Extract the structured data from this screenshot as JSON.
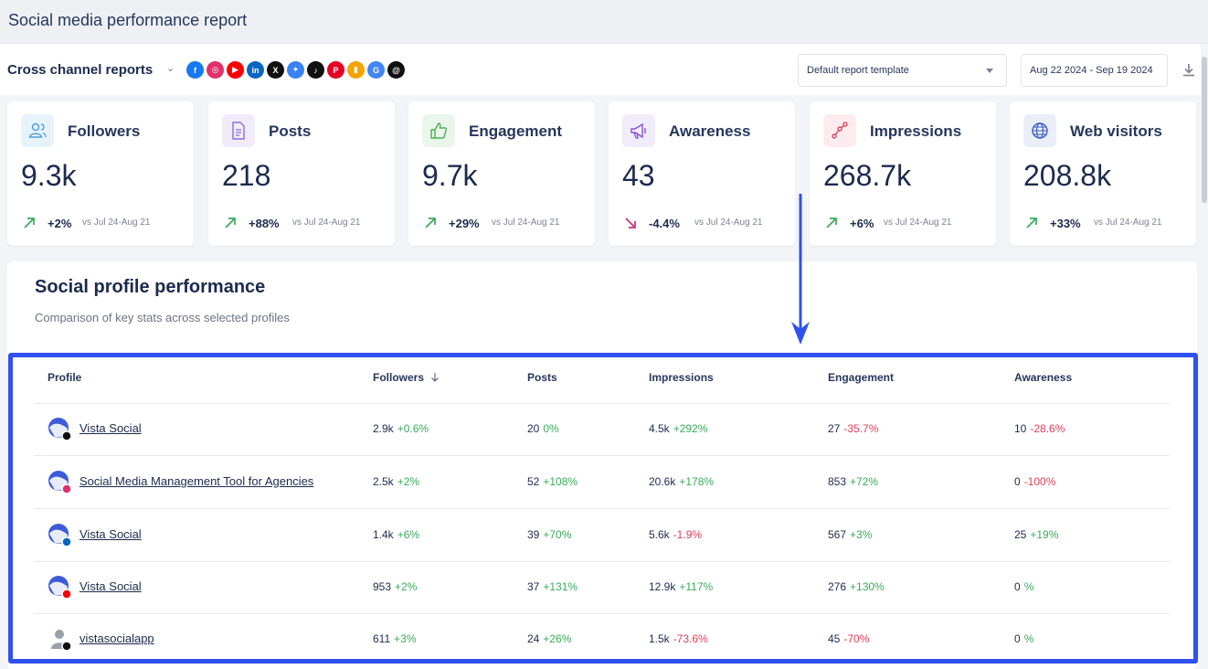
{
  "app": {
    "title": "Social media performance report"
  },
  "toolbar": {
    "report_label": "Cross channel reports",
    "networks": [
      {
        "name": "facebook-icon",
        "glyph": "f",
        "color": "#1877f2"
      },
      {
        "name": "instagram-icon",
        "glyph": "◎",
        "color": "#e1306c"
      },
      {
        "name": "youtube-icon",
        "glyph": "▶",
        "color": "#ff0000"
      },
      {
        "name": "linkedin-icon",
        "glyph": "in",
        "color": "#0a66c2"
      },
      {
        "name": "x-icon",
        "glyph": "X",
        "color": "#111111"
      },
      {
        "name": "bluesky-icon",
        "glyph": "✦",
        "color": "#3b82f6"
      },
      {
        "name": "tiktok-icon",
        "glyph": "♪",
        "color": "#111111"
      },
      {
        "name": "pinterest-icon",
        "glyph": "P",
        "color": "#e60023"
      },
      {
        "name": "analytics-icon",
        "glyph": "▮",
        "color": "#f4a300"
      },
      {
        "name": "google-business-icon",
        "glyph": "G",
        "color": "#4285f4"
      },
      {
        "name": "threads-icon",
        "glyph": "@",
        "color": "#111111"
      }
    ],
    "template_select": "Default report template",
    "date_range": "Aug 22 2024 - Sep 19 2024"
  },
  "cards": [
    {
      "label": "Followers",
      "value": "9.3k",
      "change": "+2%",
      "direction": "up",
      "compare": "vs Jul 24-Aug 21",
      "icon": "users-icon",
      "icon_bg": "#e7f3fb",
      "icon_color": "#4a9fd6"
    },
    {
      "label": "Posts",
      "value": "218",
      "change": "+88%",
      "direction": "up",
      "compare": "vs Jul 24-Aug 21",
      "icon": "document-icon",
      "icon_bg": "#f1ecfb",
      "icon_color": "#8b6fd6"
    },
    {
      "label": "Engagement",
      "value": "9.7k",
      "change": "+29%",
      "direction": "up",
      "compare": "vs Jul 24-Aug 21",
      "icon": "thumbs-up-icon",
      "icon_bg": "#eaf6ec",
      "icon_color": "#4caf50"
    },
    {
      "label": "Awareness",
      "value": "43",
      "change": "-4.4%",
      "direction": "down",
      "compare": "vs Jul 24-Aug 21",
      "icon": "megaphone-icon",
      "icon_bg": "#f1ecfb",
      "icon_color": "#8b4fd6"
    },
    {
      "label": "Impressions",
      "value": "268.7k",
      "change": "+6%",
      "direction": "up",
      "compare": "vs Jul 24-Aug 21",
      "icon": "nodes-icon",
      "icon_bg": "#fdecef",
      "icon_color": "#d9475f"
    },
    {
      "label": "Web visitors",
      "value": "208.8k",
      "change": "+33%",
      "direction": "up",
      "compare": "vs Jul 24-Aug 21",
      "icon": "globe-icon",
      "icon_bg": "#e9eef9",
      "icon_color": "#3b5cc4"
    }
  ],
  "panel": {
    "title": "Social profile performance",
    "subtitle": "Comparison of key stats across selected profiles"
  },
  "table": {
    "headers": {
      "profile": "Profile",
      "followers": "Followers",
      "posts": "Posts",
      "impressions": "Impressions",
      "engagement": "Engagement",
      "awareness": "Awareness"
    },
    "rows": [
      {
        "profile": "Vista Social",
        "network": "x",
        "badge_color": "#111111",
        "followers": "2.9k",
        "followers_change": "+0.6%",
        "followers_dir": "pos",
        "posts": "20",
        "posts_change": "0%",
        "posts_dir": "pos",
        "impressions": "4.5k",
        "impressions_change": "+292%",
        "impressions_dir": "pos",
        "engagement": "27",
        "engagement_change": "-35.7%",
        "engagement_dir": "neg",
        "awareness": "10",
        "awareness_change": "-28.6%",
        "awareness_dir": "neg"
      },
      {
        "profile": "Social Media Management Tool for Agencies",
        "network": "instagram",
        "badge_color": "#e1306c",
        "followers": "2.5k",
        "followers_change": "+2%",
        "followers_dir": "pos",
        "posts": "52",
        "posts_change": "+108%",
        "posts_dir": "pos",
        "impressions": "20.6k",
        "impressions_change": "+178%",
        "impressions_dir": "pos",
        "engagement": "853",
        "engagement_change": "+72%",
        "engagement_dir": "pos",
        "awareness": "0",
        "awareness_change": "-100%",
        "awareness_dir": "neg"
      },
      {
        "profile": "Vista Social",
        "network": "linkedin",
        "badge_color": "#0a66c2",
        "followers": "1.4k",
        "followers_change": "+6%",
        "followers_dir": "pos",
        "posts": "39",
        "posts_change": "+70%",
        "posts_dir": "pos",
        "impressions": "5.6k",
        "impressions_change": "-1.9%",
        "impressions_dir": "neg",
        "engagement": "567",
        "engagement_change": "+3%",
        "engagement_dir": "pos",
        "awareness": "25",
        "awareness_change": "+19%",
        "awareness_dir": "pos"
      },
      {
        "profile": "Vista Social",
        "network": "youtube",
        "badge_color": "#ff0000",
        "followers": "953",
        "followers_change": "+2%",
        "followers_dir": "pos",
        "posts": "37",
        "posts_change": "+131%",
        "posts_dir": "pos",
        "impressions": "12.9k",
        "impressions_change": "+117%",
        "impressions_dir": "pos",
        "engagement": "276",
        "engagement_change": "+130%",
        "engagement_dir": "pos",
        "awareness": "0",
        "awareness_change": "%",
        "awareness_dir": "pos"
      },
      {
        "profile": "vistasocialapp",
        "network": "threads",
        "badge_color": "#111111",
        "followers": "611",
        "followers_change": "+3%",
        "followers_dir": "pos",
        "posts": "24",
        "posts_change": "+26%",
        "posts_dir": "pos",
        "impressions": "1.5k",
        "impressions_change": "-73.6%",
        "impressions_dir": "neg",
        "engagement": "45",
        "engagement_change": "-70%",
        "engagement_dir": "neg",
        "awareness": "0",
        "awareness_change": "%",
        "awareness_dir": "pos"
      }
    ]
  }
}
